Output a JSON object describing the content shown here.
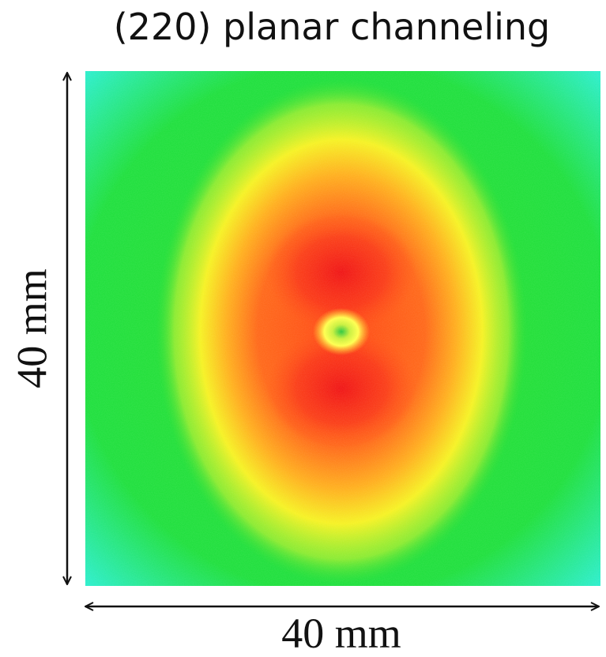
{
  "title": "(220) planar channeling",
  "x_label": "40 mm",
  "y_label": "40 mm"
}
